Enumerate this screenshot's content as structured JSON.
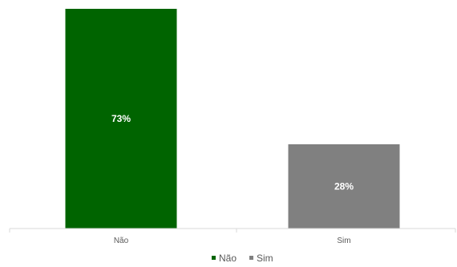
{
  "chart_data": {
    "type": "bar",
    "categories": [
      "Não",
      "Sim"
    ],
    "values": [
      73,
      28
    ],
    "data_labels": [
      "73%",
      "28%"
    ],
    "colors": [
      "#006400",
      "#808080"
    ],
    "legend": {
      "position": "bottom",
      "entries": [
        {
          "label": "Não",
          "color": "#006400"
        },
        {
          "label": "Sim",
          "color": "#808080"
        }
      ]
    },
    "ylim": [
      0,
      73
    ],
    "grid": false,
    "title": "",
    "xlabel": "",
    "ylabel": ""
  }
}
